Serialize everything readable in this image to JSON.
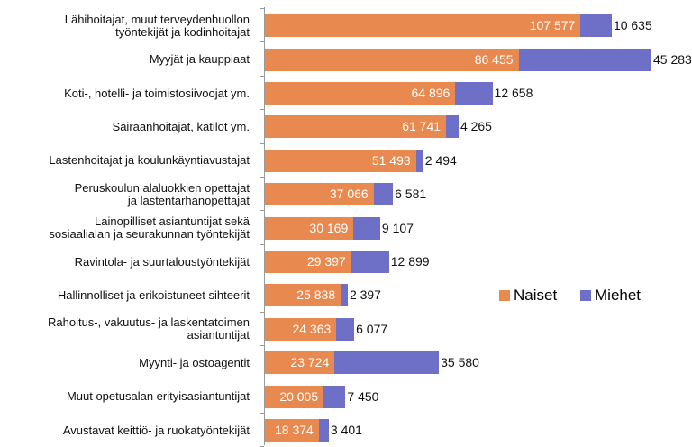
{
  "chart_data": {
    "type": "stacked-bar-horizontal",
    "categories": [
      "Lähihoitajat, muut terveydenhuollon\ntyöntekijät ja kodinhoitajat",
      "Myyjät ja kauppiaat",
      "Koti-, hotelli- ja toimistosiivoojat ym.",
      "Sairaanhoitajat, kätilöt ym.",
      "Lastenhoitajat ja koulunkäyntiavustajat",
      "Peruskoulun alaluokkien opettajat\nja lastentarhanopettajat",
      "Lainopilliset asiantuntijat sekä\nsosiaalialan ja seurakunnan työntekijät",
      "Ravintola- ja suurtaloustyöntekijät",
      "Hallinnolliset ja erikoistuneet sihteerit",
      "Rahoitus-, vakuutus- ja laskentatoimen\nasiantuntijat",
      "Myynti- ja ostoagentit",
      "Muut opetusalan erityisasiantuntijat",
      "Avustavat keittiö- ja ruokatyöntekijät"
    ],
    "series": [
      {
        "name": "Naiset",
        "color": "#e8894f",
        "values": [
          107577,
          86455,
          64896,
          61741,
          51493,
          37066,
          30169,
          29397,
          25838,
          24363,
          23724,
          20005,
          18374
        ],
        "value_labels": [
          "107 577",
          "86 455",
          "64 896",
          "61 741",
          "51 493",
          "37 066",
          "30 169",
          "29 397",
          "25 838",
          "24 363",
          "23 724",
          "20 005",
          "18 374"
        ]
      },
      {
        "name": "Miehet",
        "color": "#6d70c6",
        "values": [
          10635,
          45283,
          12658,
          4265,
          2494,
          6581,
          9107,
          12899,
          2397,
          6077,
          35580,
          7450,
          3401
        ],
        "value_labels": [
          "10 635",
          "45 283",
          "12 658",
          "4 265",
          "2 494",
          "6 581",
          "9 107",
          "12 899",
          "2 397",
          "6 077",
          "35 580",
          "7 450",
          "3 401"
        ]
      }
    ],
    "legend": "right"
  }
}
